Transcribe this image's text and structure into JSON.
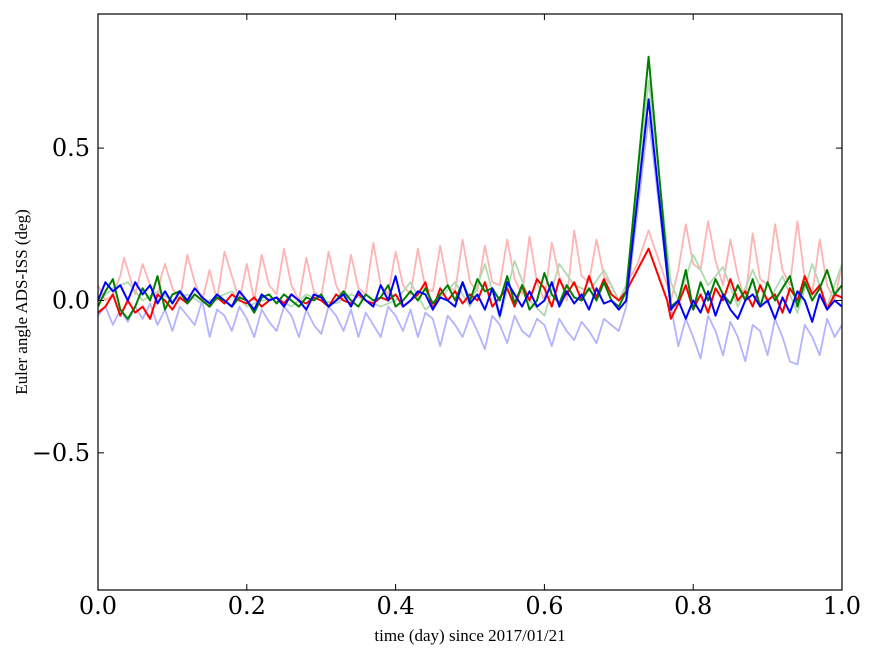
{
  "chart_data": {
    "type": "line",
    "title": "",
    "xlabel": "time (day) since 2017/01/21",
    "ylabel": "Euler angle ADS-ISS (deg)",
    "xlim": [
      0.0,
      1.0
    ],
    "ylim": [
      -0.95,
      0.94
    ],
    "xticks": [
      0.0,
      0.2,
      0.4,
      0.6,
      0.8,
      1.0
    ],
    "xtick_labels": [
      "0.0",
      "0.2",
      "0.4",
      "0.6",
      "0.8",
      "1.0"
    ],
    "yticks": [
      -0.5,
      0.0,
      0.5
    ],
    "ytick_labels": [
      "−0.5",
      "0.0",
      "0.5"
    ],
    "grid": false,
    "legend": "none",
    "series": [
      {
        "color": "#ffb3b3",
        "style": "faint",
        "x": [
          0,
          0.01,
          0.02,
          0.03,
          0.035,
          0.04,
          0.05,
          0.06,
          0.07,
          0.08,
          0.085,
          0.09,
          0.1,
          0.11,
          0.12,
          0.13,
          0.14,
          0.15,
          0.16,
          0.17,
          0.18,
          0.19,
          0.2,
          0.21,
          0.22,
          0.23,
          0.24,
          0.25,
          0.26,
          0.27,
          0.28,
          0.29,
          0.3,
          0.31,
          0.32,
          0.33,
          0.34,
          0.35,
          0.36,
          0.37,
          0.38,
          0.39,
          0.4,
          0.41,
          0.42,
          0.43,
          0.44,
          0.45,
          0.46,
          0.47,
          0.48,
          0.49,
          0.5,
          0.51,
          0.52,
          0.53,
          0.54,
          0.55,
          0.56,
          0.57,
          0.58,
          0.59,
          0.6,
          0.61,
          0.62,
          0.63,
          0.64,
          0.65,
          0.66,
          0.67,
          0.68,
          0.69,
          0.7,
          0.71,
          0.725,
          0.74,
          0.765,
          0.77,
          0.78,
          0.79,
          0.8,
          0.81,
          0.82,
          0.83,
          0.84,
          0.85,
          0.86,
          0.87,
          0.88,
          0.89,
          0.9,
          0.91,
          0.92,
          0.93,
          0.94,
          0.95,
          0.96,
          0.97,
          0.98,
          0.99,
          1.0
        ],
        "y": [
          0.05,
          0.0,
          0.02,
          0.08,
          0.14,
          0.1,
          0.02,
          0.12,
          0.05,
          0.0,
          0.08,
          0.12,
          0.04,
          0.0,
          0.15,
          0.06,
          0.0,
          0.1,
          0.0,
          0.16,
          0.08,
          0.0,
          0.12,
          0.0,
          0.15,
          0.05,
          0.02,
          0.17,
          0.05,
          0.0,
          0.14,
          0.03,
          0.01,
          0.16,
          0.05,
          0.0,
          0.15,
          0.04,
          0.02,
          0.19,
          0.05,
          0.02,
          0.16,
          0.05,
          0.02,
          0.17,
          0.04,
          0.03,
          0.18,
          0.05,
          0.03,
          0.2,
          0.06,
          0.03,
          0.18,
          0.06,
          0.05,
          0.2,
          0.07,
          0.02,
          0.21,
          0.06,
          0.0,
          0.19,
          0.08,
          0.0,
          0.23,
          0.08,
          0.06,
          0.2,
          0.08,
          0.05,
          0.0,
          0.05,
          0.12,
          0.23,
          0.05,
          0.0,
          0.1,
          0.25,
          0.12,
          0.1,
          0.26,
          0.13,
          0.05,
          0.2,
          0.08,
          0.0,
          0.22,
          0.07,
          0.05,
          0.25,
          0.1,
          0.05,
          0.26,
          0.07,
          0.02,
          0.2,
          0.05,
          0.0,
          0.12
        ]
      },
      {
        "color": "#b3d9b3",
        "style": "faint",
        "x": [
          0,
          0.02,
          0.04,
          0.06,
          0.08,
          0.1,
          0.12,
          0.14,
          0.16,
          0.18,
          0.2,
          0.22,
          0.24,
          0.26,
          0.28,
          0.3,
          0.32,
          0.34,
          0.36,
          0.38,
          0.4,
          0.42,
          0.44,
          0.46,
          0.48,
          0.5,
          0.52,
          0.54,
          0.56,
          0.58,
          0.6,
          0.62,
          0.64,
          0.66,
          0.68,
          0.7,
          0.71,
          0.74,
          0.77,
          0.78,
          0.8,
          0.82,
          0.84,
          0.86,
          0.88,
          0.9,
          0.92,
          0.94,
          0.96,
          0.98,
          1.0
        ],
        "y": [
          0.0,
          0.04,
          0.06,
          0.0,
          0.03,
          0.0,
          0.02,
          -0.01,
          0.01,
          0.03,
          -0.02,
          0.0,
          0.01,
          -0.02,
          0.02,
          0.0,
          -0.01,
          0.02,
          0.0,
          -0.02,
          0.0,
          0.06,
          -0.03,
          0.01,
          0.06,
          -0.02,
          0.12,
          -0.06,
          0.13,
          0.0,
          -0.05,
          0.12,
          0.05,
          0.03,
          0.1,
          0.0,
          0.05,
          0.72,
          0.06,
          0.0,
          0.15,
          0.05,
          0.11,
          -0.02,
          0.1,
          -0.01,
          0.08,
          -0.04,
          0.12,
          -0.02,
          0.12
        ]
      },
      {
        "color": "#b3b3ff",
        "style": "faint",
        "x": [
          0,
          0.01,
          0.02,
          0.03,
          0.04,
          0.05,
          0.06,
          0.07,
          0.08,
          0.09,
          0.1,
          0.11,
          0.12,
          0.13,
          0.14,
          0.15,
          0.16,
          0.17,
          0.18,
          0.19,
          0.2,
          0.21,
          0.22,
          0.23,
          0.24,
          0.25,
          0.26,
          0.27,
          0.28,
          0.29,
          0.3,
          0.31,
          0.32,
          0.33,
          0.34,
          0.35,
          0.36,
          0.37,
          0.38,
          0.39,
          0.4,
          0.41,
          0.42,
          0.43,
          0.44,
          0.45,
          0.46,
          0.47,
          0.48,
          0.49,
          0.5,
          0.51,
          0.52,
          0.53,
          0.54,
          0.55,
          0.56,
          0.57,
          0.58,
          0.59,
          0.6,
          0.61,
          0.62,
          0.63,
          0.64,
          0.65,
          0.66,
          0.67,
          0.68,
          0.69,
          0.7,
          0.71,
          0.74,
          0.77,
          0.78,
          0.79,
          0.8,
          0.81,
          0.82,
          0.83,
          0.84,
          0.85,
          0.86,
          0.87,
          0.88,
          0.89,
          0.9,
          0.91,
          0.92,
          0.93,
          0.94,
          0.95,
          0.96,
          0.97,
          0.98,
          0.99,
          1.0
        ],
        "y": [
          -0.05,
          -0.02,
          -0.08,
          -0.03,
          -0.07,
          -0.02,
          -0.06,
          -0.01,
          -0.08,
          -0.03,
          -0.1,
          -0.02,
          -0.05,
          -0.08,
          0.0,
          -0.12,
          -0.03,
          -0.05,
          -0.1,
          -0.02,
          -0.06,
          -0.12,
          -0.03,
          -0.07,
          -0.1,
          -0.02,
          -0.05,
          -0.12,
          -0.03,
          -0.08,
          -0.11,
          -0.02,
          -0.05,
          -0.1,
          -0.03,
          -0.12,
          -0.04,
          -0.08,
          -0.12,
          -0.02,
          -0.05,
          -0.1,
          -0.03,
          -0.12,
          -0.04,
          -0.06,
          -0.15,
          -0.05,
          -0.08,
          -0.12,
          -0.05,
          -0.1,
          -0.16,
          -0.05,
          -0.08,
          -0.14,
          -0.05,
          -0.1,
          -0.12,
          -0.06,
          -0.08,
          -0.15,
          -0.06,
          -0.1,
          -0.13,
          -0.07,
          -0.1,
          -0.14,
          -0.06,
          -0.08,
          -0.1,
          -0.02,
          0.6,
          -0.02,
          -0.15,
          -0.06,
          -0.12,
          -0.19,
          -0.05,
          -0.1,
          -0.18,
          -0.07,
          -0.12,
          -0.2,
          -0.08,
          -0.1,
          -0.18,
          -0.06,
          -0.12,
          -0.2,
          -0.21,
          -0.08,
          -0.12,
          -0.18,
          -0.06,
          -0.12,
          -0.08
        ]
      },
      {
        "color": "#ff0000",
        "style": "solid",
        "x": [
          0,
          0.01,
          0.02,
          0.03,
          0.04,
          0.05,
          0.06,
          0.07,
          0.08,
          0.09,
          0.1,
          0.11,
          0.12,
          0.13,
          0.14,
          0.15,
          0.16,
          0.17,
          0.18,
          0.19,
          0.2,
          0.21,
          0.22,
          0.23,
          0.24,
          0.25,
          0.26,
          0.27,
          0.28,
          0.29,
          0.3,
          0.31,
          0.32,
          0.33,
          0.34,
          0.35,
          0.36,
          0.37,
          0.38,
          0.39,
          0.4,
          0.41,
          0.42,
          0.43,
          0.44,
          0.45,
          0.46,
          0.47,
          0.48,
          0.49,
          0.5,
          0.51,
          0.52,
          0.53,
          0.54,
          0.55,
          0.56,
          0.57,
          0.58,
          0.59,
          0.6,
          0.61,
          0.62,
          0.63,
          0.64,
          0.65,
          0.66,
          0.67,
          0.68,
          0.69,
          0.7,
          0.71,
          0.74,
          0.765,
          0.77,
          0.78,
          0.79,
          0.8,
          0.81,
          0.82,
          0.83,
          0.84,
          0.85,
          0.86,
          0.87,
          0.88,
          0.89,
          0.9,
          0.91,
          0.92,
          0.93,
          0.94,
          0.95,
          0.96,
          0.97,
          0.98,
          0.99,
          1.0
        ],
        "y": [
          -0.04,
          -0.02,
          0.02,
          -0.05,
          0.0,
          -0.04,
          -0.02,
          -0.06,
          0.02,
          0.0,
          -0.03,
          0.01,
          -0.01,
          0.02,
          0.0,
          -0.02,
          0.01,
          -0.01,
          0.02,
          0.0,
          -0.01,
          0.01,
          -0.02,
          0.0,
          0.01,
          -0.01,
          0.02,
          0.0,
          -0.01,
          0.01,
          0.0,
          -0.02,
          0.02,
          0.0,
          -0.01,
          0.02,
          0.0,
          -0.01,
          0.01,
          0.0,
          0.02,
          -0.02,
          0.0,
          0.02,
          0.06,
          -0.03,
          0.04,
          0.0,
          0.03,
          -0.01,
          0.02,
          0.0,
          0.06,
          -0.02,
          0.01,
          0.04,
          -0.02,
          0.05,
          0.0,
          0.07,
          0.04,
          -0.02,
          0.07,
          0.02,
          0.06,
          0.0,
          0.08,
          0.01,
          0.07,
          0.02,
          0.0,
          0.03,
          0.17,
          0.0,
          -0.06,
          -0.01,
          0.05,
          -0.03,
          0.02,
          -0.04,
          0.04,
          0.0,
          0.07,
          0.0,
          0.03,
          -0.02,
          0.05,
          0.0,
          0.02,
          -0.04,
          0.04,
          0.0,
          0.08,
          0.02,
          0.05,
          -0.03,
          0.02,
          0.01
        ]
      },
      {
        "color": "#008000",
        "style": "solid",
        "x": [
          0,
          0.01,
          0.02,
          0.03,
          0.04,
          0.05,
          0.06,
          0.07,
          0.08,
          0.09,
          0.1,
          0.11,
          0.12,
          0.13,
          0.14,
          0.15,
          0.16,
          0.17,
          0.18,
          0.19,
          0.2,
          0.21,
          0.22,
          0.23,
          0.24,
          0.25,
          0.26,
          0.27,
          0.28,
          0.29,
          0.3,
          0.31,
          0.32,
          0.33,
          0.34,
          0.35,
          0.36,
          0.37,
          0.38,
          0.39,
          0.4,
          0.41,
          0.42,
          0.43,
          0.44,
          0.45,
          0.46,
          0.47,
          0.48,
          0.49,
          0.5,
          0.51,
          0.52,
          0.53,
          0.54,
          0.55,
          0.56,
          0.57,
          0.58,
          0.59,
          0.6,
          0.61,
          0.62,
          0.63,
          0.64,
          0.65,
          0.66,
          0.67,
          0.68,
          0.69,
          0.7,
          0.71,
          0.74,
          0.77,
          0.78,
          0.79,
          0.8,
          0.81,
          0.82,
          0.83,
          0.84,
          0.85,
          0.86,
          0.87,
          0.88,
          0.89,
          0.9,
          0.91,
          0.92,
          0.93,
          0.94,
          0.95,
          0.96,
          0.97,
          0.98,
          0.99,
          1.0
        ],
        "y": [
          -0.02,
          0.03,
          0.07,
          -0.03,
          -0.06,
          -0.02,
          0.04,
          0.0,
          0.08,
          -0.03,
          0.02,
          0.03,
          -0.01,
          0.02,
          0.0,
          -0.02,
          0.01,
          0.0,
          -0.02,
          0.01,
          0.0,
          -0.04,
          0.01,
          0.02,
          -0.01,
          0.02,
          0.0,
          -0.02,
          0.01,
          0.0,
          0.02,
          -0.02,
          0.0,
          0.03,
          0.0,
          -0.02,
          0.02,
          0.0,
          0.01,
          0.05,
          -0.02,
          0.0,
          0.03,
          0.0,
          0.04,
          -0.01,
          0.02,
          0.05,
          0.0,
          0.06,
          0.0,
          0.07,
          0.03,
          0.04,
          0.0,
          0.08,
          -0.01,
          0.05,
          -0.03,
          0.0,
          0.09,
          0.02,
          -0.01,
          0.05,
          0.01,
          0.0,
          0.04,
          0.0,
          0.06,
          0.0,
          -0.02,
          0.03,
          0.8,
          -0.02,
          0.0,
          0.1,
          -0.03,
          0.06,
          0.0,
          0.07,
          0.02,
          -0.01,
          0.05,
          0.0,
          0.07,
          -0.02,
          0.06,
          0.0,
          0.04,
          0.08,
          -0.02,
          0.06,
          0.0,
          0.04,
          0.1,
          0.02,
          0.05
        ]
      },
      {
        "color": "#0000ff",
        "style": "solid",
        "x": [
          0,
          0.01,
          0.02,
          0.03,
          0.04,
          0.05,
          0.06,
          0.07,
          0.08,
          0.09,
          0.1,
          0.11,
          0.12,
          0.13,
          0.14,
          0.15,
          0.16,
          0.17,
          0.18,
          0.19,
          0.2,
          0.21,
          0.22,
          0.23,
          0.24,
          0.25,
          0.26,
          0.27,
          0.28,
          0.29,
          0.3,
          0.31,
          0.32,
          0.33,
          0.34,
          0.35,
          0.36,
          0.37,
          0.38,
          0.39,
          0.4,
          0.41,
          0.42,
          0.43,
          0.44,
          0.45,
          0.46,
          0.47,
          0.48,
          0.49,
          0.5,
          0.51,
          0.52,
          0.53,
          0.54,
          0.55,
          0.56,
          0.57,
          0.58,
          0.59,
          0.6,
          0.61,
          0.62,
          0.63,
          0.64,
          0.65,
          0.66,
          0.67,
          0.68,
          0.69,
          0.7,
          0.71,
          0.74,
          0.77,
          0.78,
          0.79,
          0.8,
          0.81,
          0.82,
          0.83,
          0.84,
          0.85,
          0.86,
          0.87,
          0.88,
          0.89,
          0.9,
          0.91,
          0.92,
          0.93,
          0.94,
          0.95,
          0.96,
          0.97,
          0.98,
          0.99,
          1.0
        ],
        "y": [
          0.0,
          0.06,
          0.03,
          0.05,
          0.0,
          0.06,
          0.02,
          0.05,
          -0.01,
          0.03,
          -0.01,
          0.03,
          0.0,
          0.04,
          0.01,
          -0.01,
          0.02,
          0.0,
          -0.02,
          0.03,
          0.0,
          -0.03,
          0.02,
          0.0,
          0.01,
          -0.02,
          0.02,
          0.0,
          -0.03,
          0.02,
          0.01,
          -0.02,
          0.0,
          0.02,
          -0.02,
          0.03,
          0.0,
          -0.02,
          0.05,
          0.0,
          0.08,
          -0.02,
          0.0,
          0.03,
          0.02,
          -0.03,
          0.01,
          0.0,
          -0.02,
          0.06,
          -0.01,
          0.02,
          -0.03,
          0.04,
          -0.05,
          0.06,
          0.02,
          -0.02,
          0.03,
          -0.02,
          0.0,
          0.06,
          -0.02,
          0.03,
          -0.01,
          0.02,
          -0.03,
          0.04,
          -0.01,
          0.0,
          -0.03,
          0.0,
          0.66,
          -0.03,
          0.0,
          -0.06,
          0.0,
          -0.04,
          0.03,
          -0.05,
          0.02,
          -0.03,
          -0.06,
          0.0,
          0.02,
          -0.02,
          0.0,
          -0.06,
          0.01,
          -0.04,
          0.03,
          0.0,
          -0.07,
          0.02,
          -0.03,
          0.0,
          -0.02
        ]
      }
    ]
  }
}
